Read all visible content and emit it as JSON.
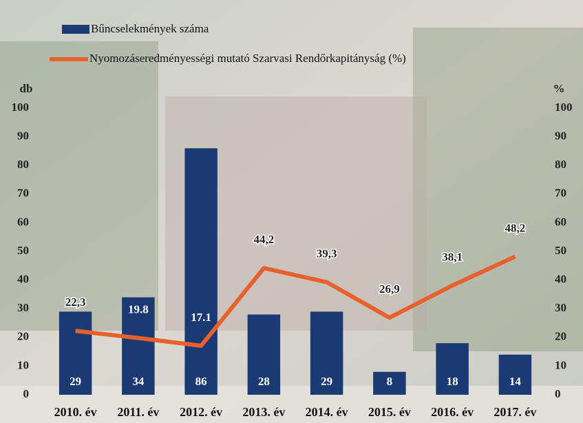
{
  "chart_data": {
    "type": "bar_line",
    "categories": [
      "2010. év",
      "2011. év",
      "2012. év",
      "2013. év",
      "2014. év",
      "2015. év",
      "2016. év",
      "2017. év"
    ],
    "series": [
      {
        "name": "Bűncselekmények száma",
        "type": "bar",
        "color": "#1b3a73",
        "values": [
          29,
          34,
          86,
          28,
          29,
          8,
          18,
          14
        ]
      },
      {
        "name": "Nyomozáseredményességi mutató Szarvasi Rendőrkapitányság (%)",
        "type": "line",
        "axis": "y2",
        "color": "#e8602c",
        "values": [
          22.3,
          19.8,
          17.1,
          44.2,
          39.3,
          26.9,
          38.1,
          48.2
        ],
        "value_labels": [
          "22,3",
          "19.8",
          "17.1",
          "44,2",
          "39,3",
          "26,9",
          "38,1",
          "48,2"
        ]
      }
    ],
    "ylabel": "db",
    "y2label": "%",
    "ylim": [
      0,
      100
    ],
    "yticks": [
      0,
      10,
      20,
      30,
      40,
      50,
      60,
      70,
      80,
      90,
      100
    ],
    "y2lim": [
      0,
      100
    ],
    "y2ticks": [
      0,
      10,
      20,
      30,
      40,
      50,
      60,
      70,
      80,
      90,
      100
    ],
    "legend": "top-left"
  }
}
